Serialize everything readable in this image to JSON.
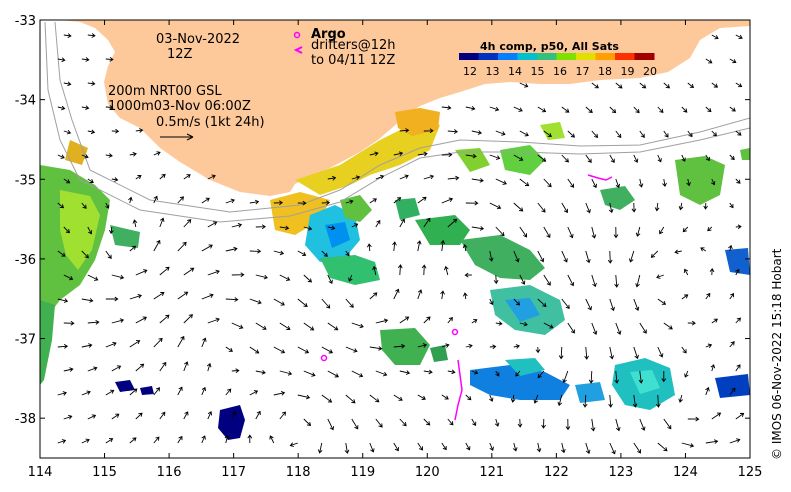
{
  "map": {
    "xaxis": {
      "min": 114,
      "max": 125,
      "ticks": [
        "114",
        "115",
        "116",
        "117",
        "118",
        "119",
        "120",
        "121",
        "122",
        "123",
        "124",
        "125"
      ]
    },
    "yaxis": {
      "min": -38.5,
      "max": -33,
      "ticks": [
        "-33",
        "-34",
        "-35",
        "-36",
        "-37",
        "-38"
      ]
    },
    "land_color": "#fdc99a",
    "annotations": {
      "date": "03-Nov-2022",
      "hour": "12Z",
      "depth_line1": "200m  NRT00 GSL",
      "depth_line2": "1000m03-Nov 06:00Z",
      "scale_label": "0.5m/s (1kt 24h)"
    },
    "legend": {
      "argo_title": "Argo",
      "argo_symbol_color": "#ff00ff",
      "drifters_line1": "drifters@12h",
      "drifters_line2": "to 04/11 12Z"
    },
    "colorbar": {
      "title": "4h comp, p50, All Sats",
      "ticks": [
        "12",
        "13",
        "14",
        "15",
        "16",
        "17",
        "18",
        "19",
        "20"
      ],
      "colors": [
        "#000080",
        "#0030c0",
        "#0080ff",
        "#00c0d0",
        "#30c080",
        "#80e000",
        "#e0e000",
        "#ffa000",
        "#ff3000",
        "#a00000"
      ]
    },
    "credit": "© IMOS 06-Nov-2022 15:18 Hobart"
  }
}
